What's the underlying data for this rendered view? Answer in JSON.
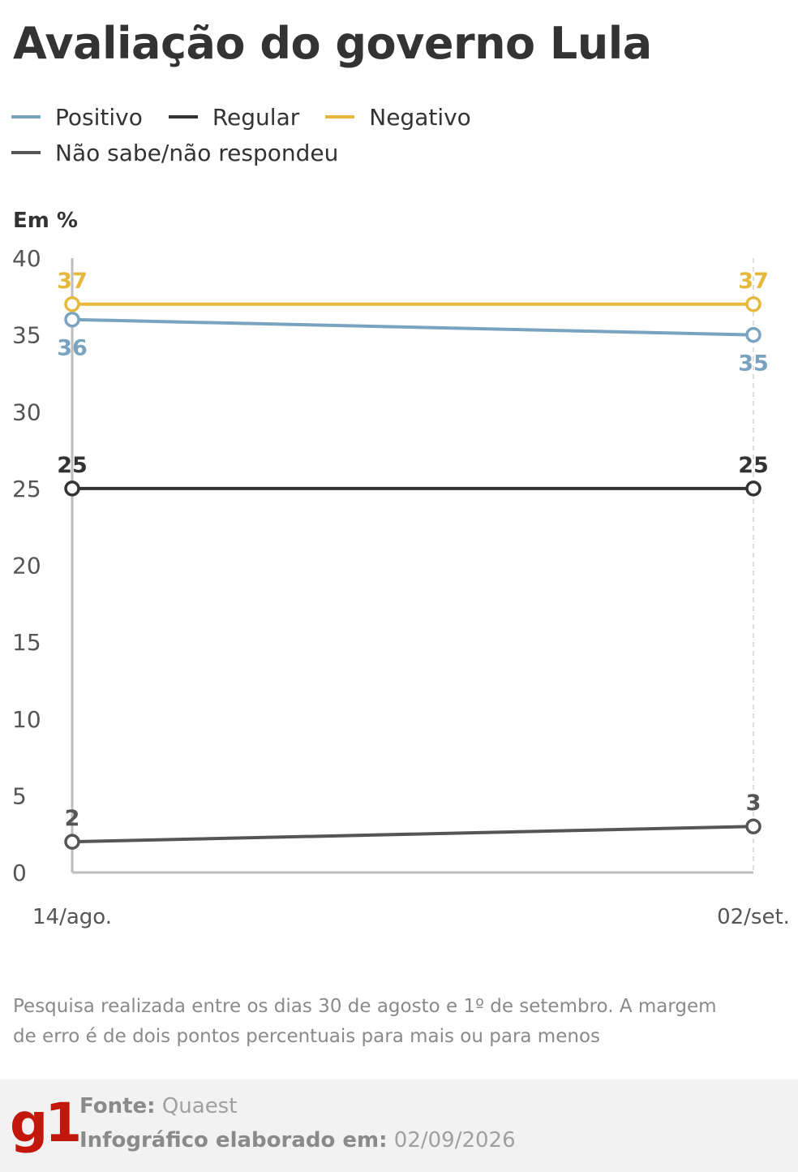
{
  "title": "Avaliação do governo Lula",
  "unit_label": "Em %",
  "legend": [
    {
      "label": "Positivo",
      "color": "#7aa3c0"
    },
    {
      "label": "Regular",
      "color": "#333333"
    },
    {
      "label": "Negativo",
      "color": "#e6b83c"
    },
    {
      "label": "Não sabe/não respondeu",
      "color": "#555555"
    }
  ],
  "chart_data": {
    "type": "line",
    "title": "Avaliação do governo Lula",
    "ylabel": "Em %",
    "xlabel": "",
    "categories": [
      "14/ago.",
      "02/set."
    ],
    "ylim": [
      0,
      40
    ],
    "yticks": [
      0,
      5,
      10,
      15,
      20,
      25,
      30,
      35,
      40
    ],
    "grid": false,
    "legend_position": "top",
    "series": [
      {
        "name": "Positivo",
        "values": [
          36,
          35
        ],
        "color": "#7aa3c0",
        "label_position": "below"
      },
      {
        "name": "Regular",
        "values": [
          25,
          25
        ],
        "color": "#333333",
        "label_position": "above"
      },
      {
        "name": "Negativo",
        "values": [
          37,
          37
        ],
        "color": "#e6b83c",
        "label_position": "above"
      },
      {
        "name": "Não sabe/não respondeu",
        "values": [
          2,
          3
        ],
        "color": "#555555",
        "label_position": "above"
      }
    ]
  },
  "note": "Pesquisa realizada entre os dias 30 de agosto e 1º de setembro. A margem de erro é de dois pontos percentuais para mais ou para menos",
  "footer": {
    "logo": "g1",
    "source_label": "Fonte:",
    "source_value": "Quaest",
    "date_label": "Infográfico elaborado em:",
    "date_value": "02/09/2026"
  }
}
